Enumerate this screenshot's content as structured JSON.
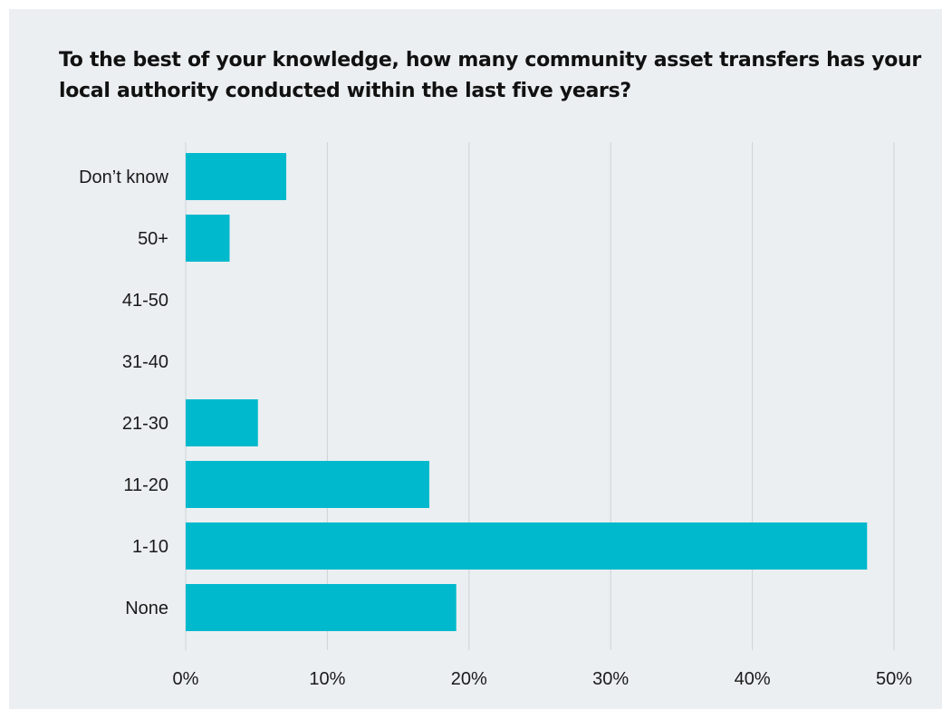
{
  "chart_data": {
    "type": "bar",
    "orientation": "horizontal",
    "title": "To the best of your knowledge, how many community asset transfers has your local authority conducted within the last five years?",
    "categories": [
      "Don’t know",
      "50+",
      "41-50",
      "31-40",
      "21-30",
      "11-20",
      "1-10",
      "None"
    ],
    "values": [
      7.1,
      3.1,
      0,
      0,
      5.1,
      17.2,
      48.1,
      19.1
    ],
    "unit": "%",
    "xlim": [
      0,
      50
    ],
    "xticks": [
      0,
      10,
      20,
      30,
      40,
      50
    ],
    "xtick_labels": [
      "0%",
      "10%",
      "20%",
      "30%",
      "40%",
      "50%"
    ],
    "xlabel": "",
    "ylabel": "",
    "grid": "vertical",
    "legend": "none",
    "colors": {
      "bar": "#00b9cc",
      "background": "#ebeff2",
      "grid": "#cdd3d8",
      "text": "#1a1a1a"
    }
  }
}
